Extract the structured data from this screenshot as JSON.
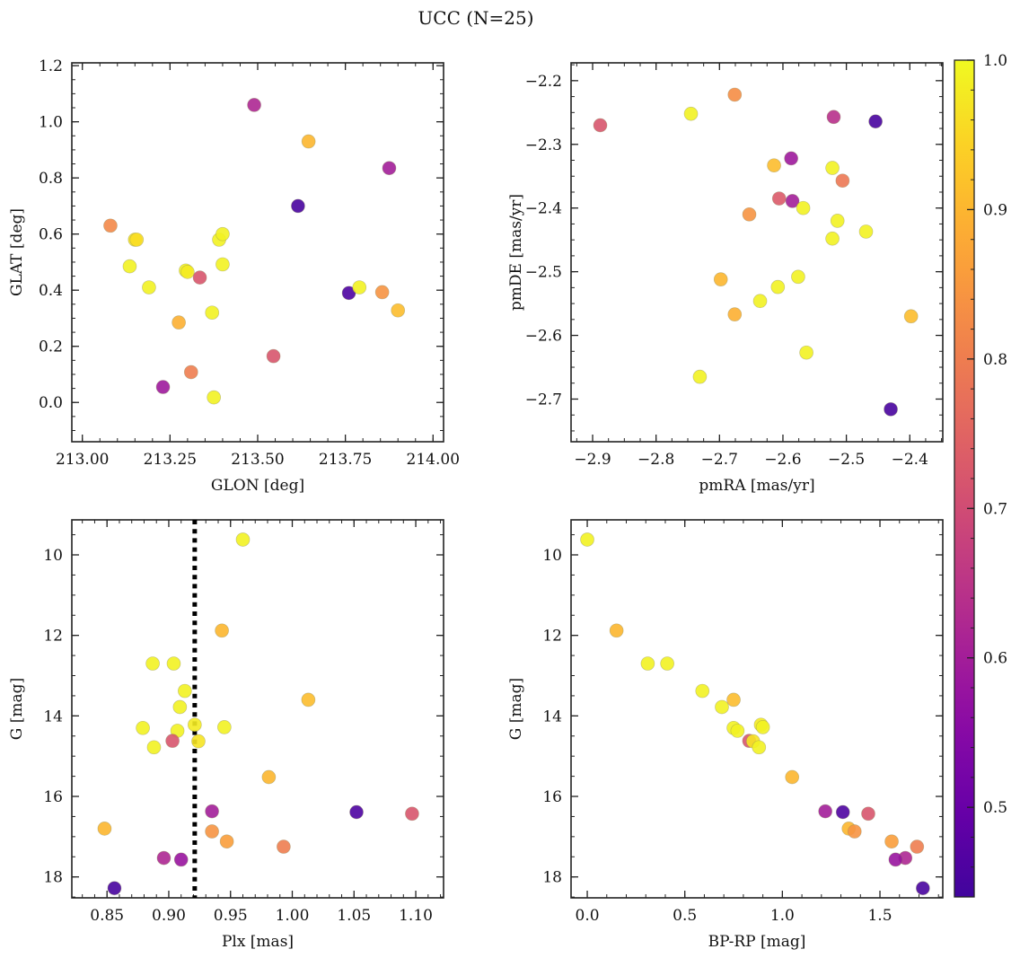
{
  "figure": {
    "title": "UCC (N=25)"
  },
  "colorbar": {
    "colormap": "plasma",
    "range": [
      0.44,
      1.0
    ],
    "ticks": [
      0.5,
      0.6,
      0.7,
      0.8,
      0.9,
      1.0
    ],
    "tick_labels": [
      "0.5",
      "0.6",
      "0.7",
      "0.8",
      "0.9",
      "1.0"
    ],
    "label": ""
  },
  "chart_data": [
    {
      "type": "scatter",
      "id": "glon-glat",
      "title": "",
      "xlabel": "GLON [deg]",
      "ylabel": "GLAT [deg]",
      "xlim": [
        212.97,
        214.03
      ],
      "ylim": [
        -0.14,
        1.21
      ],
      "xticks": [
        213.0,
        213.25,
        213.5,
        213.75,
        214.0
      ],
      "xtick_labels": [
        "213.00",
        "213.25",
        "213.50",
        "213.75",
        "214.00"
      ],
      "yticks": [
        0.0,
        0.2,
        0.4,
        0.6,
        0.8,
        1.0,
        1.2
      ],
      "ytick_labels": [
        "0.0",
        "0.2",
        "0.4",
        "0.6",
        "0.8",
        "1.0",
        "1.2"
      ],
      "y_inverted": false,
      "points": [
        {
          "x": 213.08,
          "y": 0.63,
          "c": 0.82
        },
        {
          "x": 213.15,
          "y": 0.58,
          "c": 0.97
        },
        {
          "x": 213.155,
          "y": 0.58,
          "c": 0.96
        },
        {
          "x": 213.135,
          "y": 0.485,
          "c": 0.99
        },
        {
          "x": 213.19,
          "y": 0.41,
          "c": 0.99
        },
        {
          "x": 213.23,
          "y": 0.055,
          "c": 0.59
        },
        {
          "x": 213.275,
          "y": 0.285,
          "c": 0.89
        },
        {
          "x": 213.295,
          "y": 0.47,
          "c": 0.99
        },
        {
          "x": 213.3,
          "y": 0.465,
          "c": 0.98
        },
        {
          "x": 213.31,
          "y": 0.108,
          "c": 0.8
        },
        {
          "x": 213.335,
          "y": 0.445,
          "c": 0.72
        },
        {
          "x": 213.37,
          "y": 0.32,
          "c": 0.99
        },
        {
          "x": 213.375,
          "y": 0.018,
          "c": 0.99
        },
        {
          "x": 213.39,
          "y": 0.58,
          "c": 0.99
        },
        {
          "x": 213.4,
          "y": 0.6,
          "c": 0.99
        },
        {
          "x": 213.4,
          "y": 0.492,
          "c": 0.99
        },
        {
          "x": 213.49,
          "y": 1.06,
          "c": 0.62
        },
        {
          "x": 213.545,
          "y": 0.165,
          "c": 0.72
        },
        {
          "x": 213.615,
          "y": 0.7,
          "c": 0.45
        },
        {
          "x": 213.645,
          "y": 0.93,
          "c": 0.9
        },
        {
          "x": 213.76,
          "y": 0.39,
          "c": 0.46
        },
        {
          "x": 213.79,
          "y": 0.41,
          "c": 0.99
        },
        {
          "x": 213.855,
          "y": 0.393,
          "c": 0.84
        },
        {
          "x": 213.875,
          "y": 0.835,
          "c": 0.6
        },
        {
          "x": 213.9,
          "y": 0.328,
          "c": 0.91
        }
      ]
    },
    {
      "type": "scatter",
      "id": "pmra-pmde",
      "title": "",
      "xlabel": "pmRA [mas/yr]",
      "ylabel": "pmDE [mas/yr]",
      "xlim": [
        -2.934,
        -2.348
      ],
      "ylim": [
        -2.767,
        -2.172
      ],
      "xticks": [
        -2.9,
        -2.8,
        -2.7,
        -2.6,
        -2.5,
        -2.4
      ],
      "xtick_labels": [
        "−2.9",
        "−2.8",
        "−2.7",
        "−2.6",
        "−2.5",
        "−2.4"
      ],
      "yticks": [
        -2.7,
        -2.6,
        -2.5,
        -2.4,
        -2.3,
        -2.2
      ],
      "ytick_labels": [
        "−2.7",
        "−2.6",
        "−2.5",
        "−2.4",
        "−2.3",
        "−2.2"
      ],
      "y_inverted": false,
      "points": [
        {
          "x": -2.888,
          "y": -2.27,
          "c": 0.72
        },
        {
          "x": -2.745,
          "y": -2.252,
          "c": 0.99
        },
        {
          "x": -2.676,
          "y": -2.222,
          "c": 0.83
        },
        {
          "x": -2.52,
          "y": -2.257,
          "c": 0.64
        },
        {
          "x": -2.454,
          "y": -2.264,
          "c": 0.45
        },
        {
          "x": -2.587,
          "y": -2.322,
          "c": 0.59
        },
        {
          "x": -2.614,
          "y": -2.333,
          "c": 0.91
        },
        {
          "x": -2.522,
          "y": -2.337,
          "c": 0.99
        },
        {
          "x": -2.506,
          "y": -2.357,
          "c": 0.79
        },
        {
          "x": -2.606,
          "y": -2.385,
          "c": 0.73
        },
        {
          "x": -2.585,
          "y": -2.389,
          "c": 0.6
        },
        {
          "x": -2.568,
          "y": -2.4,
          "c": 0.99
        },
        {
          "x": -2.653,
          "y": -2.41,
          "c": 0.84
        },
        {
          "x": -2.514,
          "y": -2.42,
          "c": 0.99
        },
        {
          "x": -2.469,
          "y": -2.437,
          "c": 0.99
        },
        {
          "x": -2.522,
          "y": -2.448,
          "c": 0.99
        },
        {
          "x": -2.576,
          "y": -2.508,
          "c": 0.99
        },
        {
          "x": -2.698,
          "y": -2.512,
          "c": 0.9
        },
        {
          "x": -2.608,
          "y": -2.524,
          "c": 0.99
        },
        {
          "x": -2.636,
          "y": -2.546,
          "c": 0.99
        },
        {
          "x": -2.676,
          "y": -2.567,
          "c": 0.89
        },
        {
          "x": -2.398,
          "y": -2.57,
          "c": 0.91
        },
        {
          "x": -2.563,
          "y": -2.627,
          "c": 0.99
        },
        {
          "x": -2.731,
          "y": -2.665,
          "c": 0.99
        },
        {
          "x": -2.43,
          "y": -2.716,
          "c": 0.45
        }
      ]
    },
    {
      "type": "scatter",
      "id": "plx-g",
      "title": "",
      "xlabel": "Plx [mas]",
      "ylabel": "G [mag]",
      "xlim": [
        0.8215,
        1.1225
      ],
      "ylim": [
        18.52,
        9.13
      ],
      "xticks": [
        0.85,
        0.9,
        0.95,
        1.0,
        1.05,
        1.1
      ],
      "xtick_labels": [
        "0.85",
        "0.90",
        "0.95",
        "1.00",
        "1.05",
        "1.10"
      ],
      "yticks": [
        10,
        12,
        14,
        16,
        18
      ],
      "ytick_labels": [
        "10",
        "12",
        "14",
        "16",
        "18"
      ],
      "y_inverted": true,
      "vline": {
        "x": 0.921,
        "style": "dotted",
        "color": "#000000"
      },
      "points": [
        {
          "x": 0.96,
          "y": 9.62,
          "c": 0.99
        },
        {
          "x": 0.943,
          "y": 11.88,
          "c": 0.9
        },
        {
          "x": 0.887,
          "y": 12.7,
          "c": 0.99
        },
        {
          "x": 0.904,
          "y": 12.7,
          "c": 0.99
        },
        {
          "x": 0.913,
          "y": 13.38,
          "c": 0.99
        },
        {
          "x": 1.013,
          "y": 13.6,
          "c": 0.91
        },
        {
          "x": 0.909,
          "y": 13.78,
          "c": 0.99
        },
        {
          "x": 0.921,
          "y": 14.22,
          "c": 0.98
        },
        {
          "x": 0.879,
          "y": 14.3,
          "c": 0.99
        },
        {
          "x": 0.945,
          "y": 14.28,
          "c": 0.99
        },
        {
          "x": 0.907,
          "y": 14.37,
          "c": 0.99
        },
        {
          "x": 0.903,
          "y": 14.62,
          "c": 0.72
        },
        {
          "x": 0.924,
          "y": 14.63,
          "c": 0.97
        },
        {
          "x": 0.888,
          "y": 14.78,
          "c": 0.99
        },
        {
          "x": 0.981,
          "y": 15.52,
          "c": 0.9
        },
        {
          "x": 0.935,
          "y": 16.37,
          "c": 0.6
        },
        {
          "x": 1.052,
          "y": 16.39,
          "c": 0.46
        },
        {
          "x": 1.097,
          "y": 16.43,
          "c": 0.72
        },
        {
          "x": 0.848,
          "y": 16.8,
          "c": 0.9
        },
        {
          "x": 0.935,
          "y": 16.87,
          "c": 0.84
        },
        {
          "x": 0.947,
          "y": 17.12,
          "c": 0.86
        },
        {
          "x": 0.993,
          "y": 17.25,
          "c": 0.8
        },
        {
          "x": 0.896,
          "y": 17.53,
          "c": 0.62
        },
        {
          "x": 0.91,
          "y": 17.57,
          "c": 0.58
        },
        {
          "x": 0.856,
          "y": 18.28,
          "c": 0.45
        }
      ]
    },
    {
      "type": "scatter",
      "id": "bprp-g",
      "title": "",
      "xlabel": "BP-RP [mag]",
      "ylabel": "G [mag]",
      "xlim": [
        -0.083,
        1.822
      ],
      "ylim": [
        18.52,
        9.13
      ],
      "xticks": [
        0.0,
        0.5,
        1.0,
        1.5
      ],
      "xtick_labels": [
        "0.0",
        "0.5",
        "1.0",
        "1.5"
      ],
      "yticks": [
        10,
        12,
        14,
        16,
        18
      ],
      "ytick_labels": [
        "10",
        "12",
        "14",
        "16",
        "18"
      ],
      "y_inverted": true,
      "points": [
        {
          "x": 0.0,
          "y": 9.62,
          "c": 0.99
        },
        {
          "x": 0.15,
          "y": 11.88,
          "c": 0.9
        },
        {
          "x": 0.31,
          "y": 12.7,
          "c": 0.99
        },
        {
          "x": 0.41,
          "y": 12.7,
          "c": 0.99
        },
        {
          "x": 0.59,
          "y": 13.38,
          "c": 0.99
        },
        {
          "x": 0.75,
          "y": 13.6,
          "c": 0.91
        },
        {
          "x": 0.69,
          "y": 13.78,
          "c": 0.99
        },
        {
          "x": 0.89,
          "y": 14.22,
          "c": 0.98
        },
        {
          "x": 0.75,
          "y": 14.3,
          "c": 0.99
        },
        {
          "x": 0.9,
          "y": 14.28,
          "c": 0.99
        },
        {
          "x": 0.77,
          "y": 14.37,
          "c": 0.99
        },
        {
          "x": 0.83,
          "y": 14.62,
          "c": 0.72
        },
        {
          "x": 0.85,
          "y": 14.63,
          "c": 0.97
        },
        {
          "x": 0.88,
          "y": 14.78,
          "c": 0.99
        },
        {
          "x": 1.05,
          "y": 15.52,
          "c": 0.9
        },
        {
          "x": 1.22,
          "y": 16.37,
          "c": 0.6
        },
        {
          "x": 1.31,
          "y": 16.39,
          "c": 0.46
        },
        {
          "x": 1.44,
          "y": 16.43,
          "c": 0.72
        },
        {
          "x": 1.34,
          "y": 16.8,
          "c": 0.9
        },
        {
          "x": 1.37,
          "y": 16.87,
          "c": 0.84
        },
        {
          "x": 1.56,
          "y": 17.12,
          "c": 0.86
        },
        {
          "x": 1.69,
          "y": 17.25,
          "c": 0.8
        },
        {
          "x": 1.63,
          "y": 17.53,
          "c": 0.62
        },
        {
          "x": 1.58,
          "y": 17.57,
          "c": 0.58
        },
        {
          "x": 1.72,
          "y": 18.28,
          "c": 0.45
        }
      ]
    }
  ]
}
